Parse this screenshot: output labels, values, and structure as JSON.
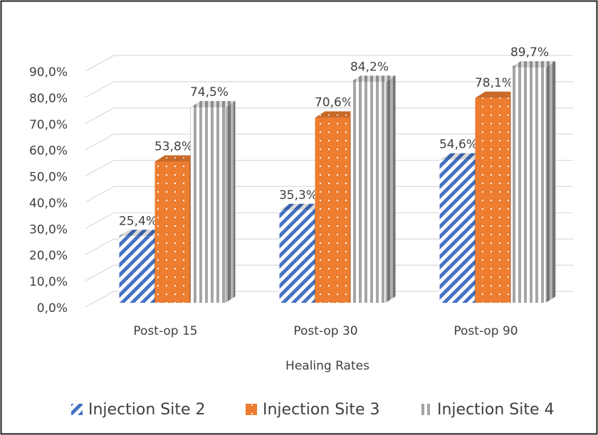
{
  "chart_data": {
    "type": "bar3d",
    "x_label": "Healing Rates",
    "categories": [
      "Post-op 15",
      "Post-op 30",
      "Post-op 90"
    ],
    "series": [
      {
        "name": "Injection Site 2",
        "color": "#4472c4",
        "pattern": "diagonal",
        "values": [
          25.4,
          35.3,
          54.6
        ],
        "value_labels": [
          "25,4%",
          "35,3%",
          "54,6%"
        ]
      },
      {
        "name": "Injection Site 3",
        "color": "#ed7d31",
        "pattern": "dots",
        "values": [
          53.8,
          70.6,
          78.1
        ],
        "value_labels": [
          "53,8%",
          "70,6%",
          "78,1%"
        ]
      },
      {
        "name": "Injection Site 4",
        "color": "#a5a5a5",
        "pattern": "vertical",
        "values": [
          74.5,
          84.2,
          89.7
        ],
        "value_labels": [
          "74,5%",
          "84,2%",
          "89,7%"
        ]
      }
    ],
    "ylim": [
      0,
      90
    ],
    "yticks": [
      {
        "value": 0,
        "label": "0,0%"
      },
      {
        "value": 10,
        "label": "10,0%"
      },
      {
        "value": 20,
        "label": "20,0%"
      },
      {
        "value": 30,
        "label": "30,0%"
      },
      {
        "value": 40,
        "label": "40,0%"
      },
      {
        "value": 50,
        "label": "50,0%"
      },
      {
        "value": 60,
        "label": "60,0%"
      },
      {
        "value": 70,
        "label": "70,0%"
      },
      {
        "value": 80,
        "label": "80,0%"
      },
      {
        "value": 90,
        "label": "90,0%"
      }
    ],
    "grid": true,
    "legend": "bottom"
  }
}
